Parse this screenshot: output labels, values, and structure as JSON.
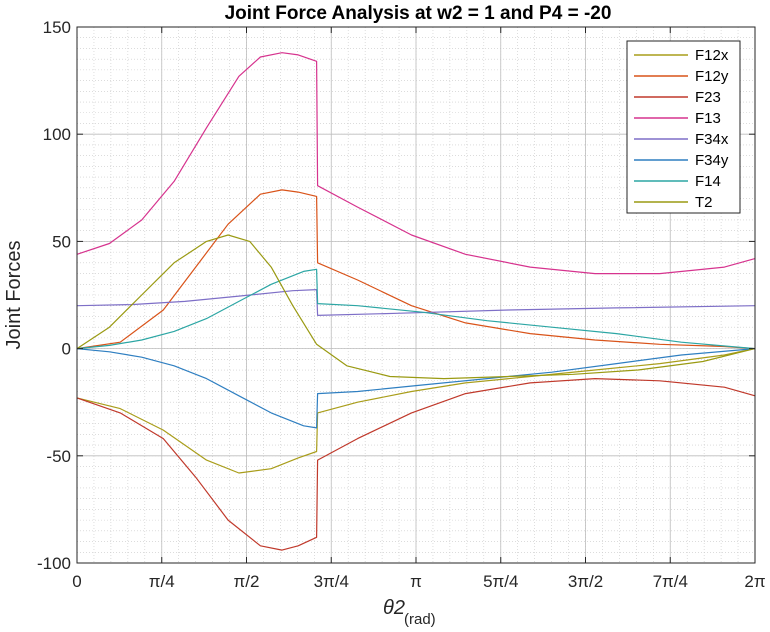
{
  "chart_data": {
    "type": "line",
    "title": "Joint Force Analysis at w2 = 1 and P4 = -20",
    "ylabel": "Joint Forces",
    "xlabel_main": "θ2",
    "xlabel_sub": "(rad)",
    "xlim": [
      0,
      6.2832
    ],
    "ylim": [
      -100,
      150
    ],
    "grid": "on (major and minor)",
    "legend_position": "top-right",
    "x_ticks": [
      {
        "value": 0,
        "label": "0"
      },
      {
        "value": 0.7854,
        "label": "π/4"
      },
      {
        "value": 1.5708,
        "label": "π/2"
      },
      {
        "value": 2.3562,
        "label": "3π/4"
      },
      {
        "value": 3.1416,
        "label": "π"
      },
      {
        "value": 3.927,
        "label": "5π/4"
      },
      {
        "value": 4.7124,
        "label": "3π/2"
      },
      {
        "value": 5.4978,
        "label": "7π/4"
      },
      {
        "value": 6.2832,
        "label": "2π"
      }
    ],
    "y_ticks": [
      {
        "value": -100,
        "label": "-100"
      },
      {
        "value": -50,
        "label": "-50"
      },
      {
        "value": 0,
        "label": "0"
      },
      {
        "value": 50,
        "label": "50"
      },
      {
        "value": 100,
        "label": "100"
      },
      {
        "value": 150,
        "label": "150"
      }
    ],
    "series": [
      {
        "name": "F12x",
        "color": "#A99D1A",
        "x": [
          0,
          0.4,
          0.8,
          1.2,
          1.5,
          1.8,
          2.05,
          2.22,
          2.23,
          2.6,
          3.1,
          3.6,
          4.2,
          4.8,
          5.4,
          6.0,
          6.2832
        ],
        "y": [
          -23,
          -28,
          -38,
          -52,
          -58,
          -56,
          -51,
          -48,
          -30,
          -25,
          -20,
          -16,
          -13,
          -10,
          -7,
          -3,
          0
        ]
      },
      {
        "name": "F12y",
        "color": "#D95319",
        "x": [
          0,
          0.4,
          0.8,
          1.1,
          1.4,
          1.7,
          1.9,
          2.05,
          2.22,
          2.23,
          2.6,
          3.1,
          3.6,
          4.2,
          4.8,
          5.4,
          6.0,
          6.2832
        ],
        "y": [
          0,
          3,
          18,
          38,
          58,
          72,
          74,
          73,
          71,
          40,
          32,
          20,
          12,
          7,
          4,
          2,
          1,
          0
        ]
      },
      {
        "name": "F23",
        "color": "#C0392B",
        "x": [
          0,
          0.4,
          0.8,
          1.1,
          1.4,
          1.7,
          1.9,
          2.05,
          2.22,
          2.23,
          2.6,
          3.1,
          3.6,
          4.2,
          4.8,
          5.4,
          6.0,
          6.2832
        ],
        "y": [
          -23,
          -30,
          -42,
          -60,
          -80,
          -92,
          -94,
          -92,
          -88,
          -52,
          -42,
          -30,
          -21,
          -16,
          -14,
          -15,
          -18,
          -22
        ]
      },
      {
        "name": "F13",
        "color": "#D6338E",
        "x": [
          0,
          0.3,
          0.6,
          0.9,
          1.2,
          1.5,
          1.7,
          1.9,
          2.05,
          2.22,
          2.23,
          2.6,
          3.1,
          3.6,
          4.2,
          4.8,
          5.4,
          6.0,
          6.2832
        ],
        "y": [
          44,
          49,
          60,
          78,
          103,
          127,
          136,
          138,
          137,
          134,
          76,
          66,
          53,
          44,
          38,
          35,
          35,
          38,
          42
        ]
      },
      {
        "name": "F34x",
        "color": "#7E6FC7",
        "x": [
          0,
          0.5,
          1.0,
          1.5,
          2.0,
          2.22,
          2.23,
          3.0,
          4.0,
          5.0,
          6.2832
        ],
        "y": [
          20,
          20.5,
          22,
          24.5,
          27,
          27.5,
          15.5,
          16.5,
          18,
          19,
          20
        ]
      },
      {
        "name": "F34y",
        "color": "#2F7FC1",
        "x": [
          0,
          0.3,
          0.6,
          0.9,
          1.2,
          1.5,
          1.8,
          2.1,
          2.22,
          2.23,
          2.6,
          3.2,
          3.8,
          4.4,
          5.0,
          5.6,
          6.2832
        ],
        "y": [
          0,
          -1.5,
          -4,
          -8,
          -14,
          -22,
          -30,
          -36,
          -37,
          -21,
          -20,
          -17,
          -14,
          -11,
          -7,
          -3,
          0
        ]
      },
      {
        "name": "F14",
        "color": "#2CA6A4",
        "x": [
          0,
          0.3,
          0.6,
          0.9,
          1.2,
          1.5,
          1.8,
          2.1,
          2.22,
          2.23,
          2.6,
          3.2,
          3.8,
          4.4,
          5.0,
          5.6,
          6.2832
        ],
        "y": [
          0,
          1.5,
          4,
          8,
          14,
          22,
          30,
          36,
          37,
          21,
          20,
          17,
          13,
          10,
          7,
          3,
          0
        ]
      },
      {
        "name": "T2",
        "color": "#9A9A12",
        "x": [
          0,
          0.3,
          0.6,
          0.9,
          1.2,
          1.4,
          1.6,
          1.8,
          2.0,
          2.22,
          2.5,
          2.9,
          3.4,
          4.0,
          4.6,
          5.2,
          5.8,
          6.2832
        ],
        "y": [
          0,
          10,
          25,
          40,
          50,
          53,
          50,
          38,
          20,
          2,
          -8,
          -13,
          -14,
          -13,
          -12,
          -10,
          -6,
          0
        ]
      }
    ]
  }
}
